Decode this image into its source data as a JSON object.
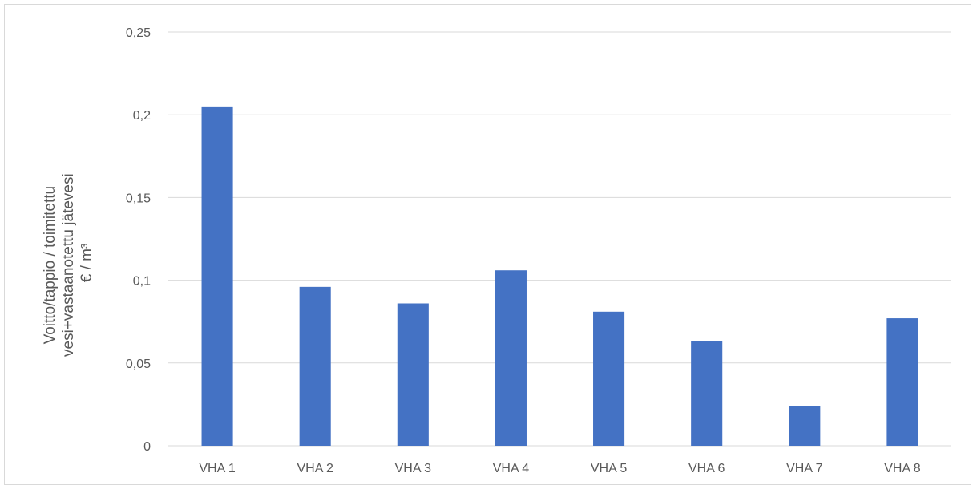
{
  "chart_data": {
    "type": "bar",
    "title": "",
    "xlabel": "",
    "ylabel_lines": [
      "Voitto/tappio / toimitettu",
      "vesi+vastaanotettu jätevesi",
      "€ / m³"
    ],
    "categories": [
      "VHA 1",
      "VHA 2",
      "VHA 3",
      "VHA 4",
      "VHA 5",
      "VHA 6",
      "VHA 7",
      "VHA 8"
    ],
    "values": [
      0.205,
      0.096,
      0.086,
      0.106,
      0.081,
      0.063,
      0.024,
      0.077
    ],
    "ylim": [
      0,
      0.25
    ],
    "yticks": [
      0,
      0.05,
      0.1,
      0.15,
      0.2,
      0.25
    ],
    "ytick_labels": [
      "0",
      "0,05",
      "0,1",
      "0,15",
      "0,2",
      "0,25"
    ],
    "grid": true,
    "legend": "none",
    "bar_color": "#4472C4",
    "grid_color": "#d9d9d9",
    "text_color": "#595959"
  }
}
